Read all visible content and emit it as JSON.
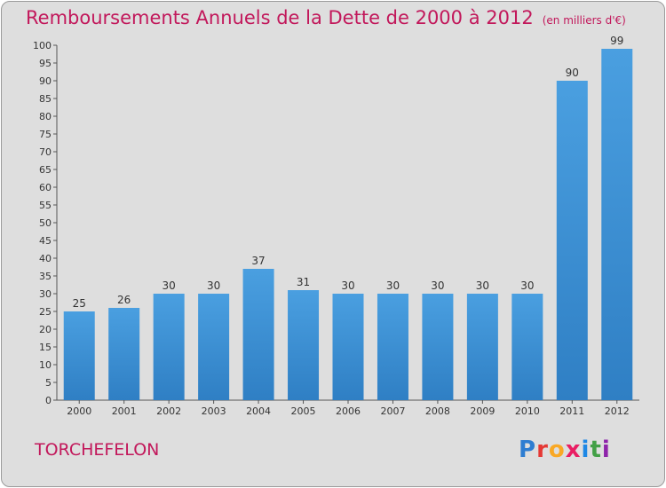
{
  "header": {
    "title": "Remboursements Annuels de la Dette de 2000 à 2012",
    "unit": "(en milliers d'€)"
  },
  "footer": {
    "place": "TORCHEFELON",
    "brand": "Proxiti",
    "brand_colors": [
      "#2e7dd1",
      "#e53935",
      "#f9a825",
      "#e91e63",
      "#1e88e5",
      "#43a047",
      "#8e24aa"
    ]
  },
  "colors": {
    "bar": "#4a9fe0",
    "bar_dark": "#2f7fc4",
    "title": "#c2185b",
    "background": "#dedede"
  },
  "chart_data": {
    "type": "bar",
    "categories": [
      "2000",
      "2001",
      "2002",
      "2003",
      "2004",
      "2005",
      "2006",
      "2007",
      "2008",
      "2009",
      "2010",
      "2011",
      "2012"
    ],
    "values": [
      25,
      26,
      30,
      30,
      37,
      31,
      30,
      30,
      30,
      30,
      30,
      90,
      99
    ],
    "title": "Remboursements Annuels de la Dette de 2000 à 2012",
    "subtitle": "(en milliers d'€)",
    "ylim": [
      0,
      100
    ],
    "ytick_step": 5,
    "grid": false,
    "data_labels": true
  }
}
